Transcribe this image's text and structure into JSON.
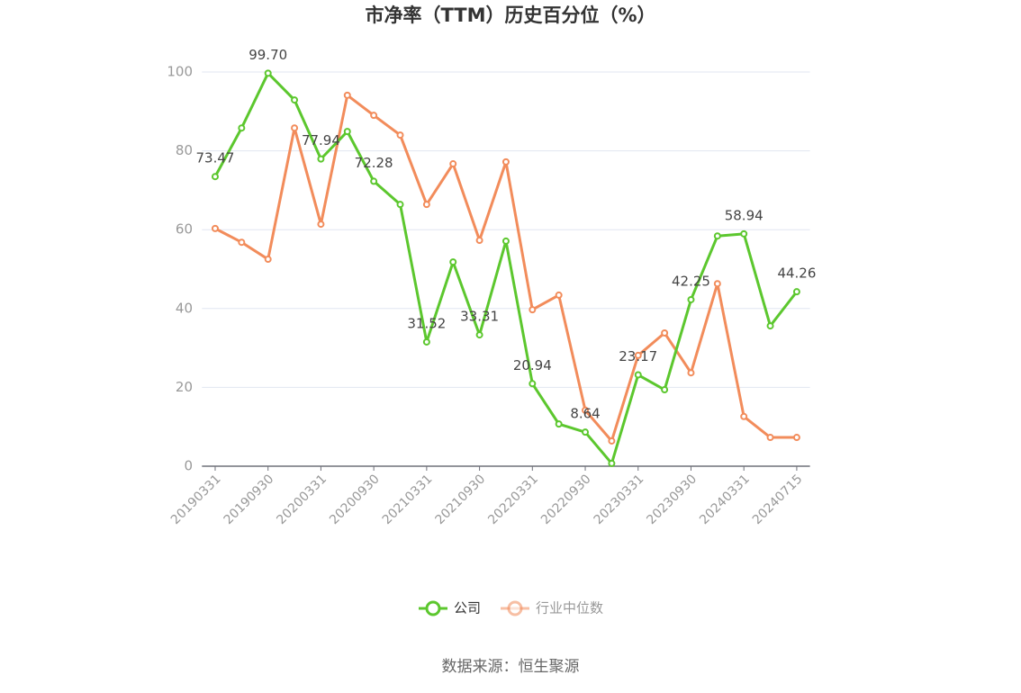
{
  "chart_data": {
    "type": "line",
    "title": "市净率（TTM）历史百分位（%）",
    "source": "数据来源：恒生聚源",
    "categories": [
      "20190331",
      null,
      "20190930",
      null,
      "20200331",
      null,
      "20200930",
      null,
      "20210331",
      null,
      "20210930",
      null,
      "20220331",
      null,
      "20220930",
      null,
      "20230331",
      null,
      "20230930",
      null,
      "20240331",
      null,
      "20240715"
    ],
    "series": [
      {
        "name": "公司",
        "color": "#5cc72e",
        "values": [
          73.47,
          85.8,
          99.7,
          92.9,
          77.94,
          84.9,
          72.28,
          66.4,
          31.52,
          51.8,
          33.31,
          57.1,
          20.94,
          10.7,
          8.64,
          0.7,
          23.17,
          19.4,
          42.25,
          58.4,
          58.94,
          35.6,
          44.26
        ],
        "value_labels": [
          "73.47",
          null,
          "99.70",
          null,
          "77.94",
          null,
          "72.28",
          null,
          "31.52",
          null,
          "33.31",
          null,
          "20.94",
          null,
          "8.64",
          null,
          "23.17",
          null,
          "42.25",
          null,
          "58.94",
          null,
          "44.26"
        ]
      },
      {
        "name": "行业中位数",
        "color": "#f28c5b",
        "values": [
          60.3,
          56.8,
          52.5,
          85.8,
          61.4,
          94.1,
          89.0,
          84.0,
          66.4,
          76.7,
          57.3,
          77.2,
          39.7,
          43.4,
          14.2,
          6.4,
          28.1,
          33.8,
          23.7,
          46.3,
          12.6,
          7.3,
          7.3
        ]
      }
    ],
    "ylim": [
      0,
      100
    ],
    "yticks": [
      0,
      20,
      40,
      60,
      80,
      100
    ],
    "grid": true
  }
}
